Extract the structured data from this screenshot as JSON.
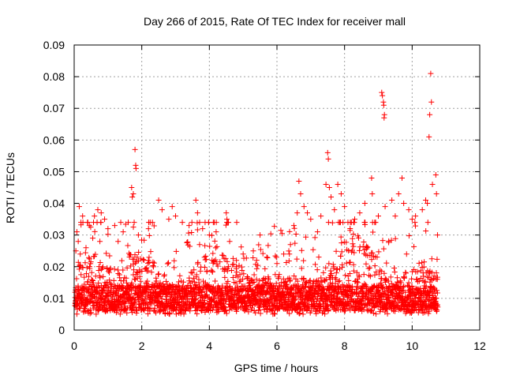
{
  "chart_data": {
    "type": "scatter",
    "title": "Day 266 of 2015, Rate Of TEC Index for receiver mall",
    "xlabel": "GPS time / hours",
    "ylabel": "ROTI / TECUs",
    "xlim": [
      0,
      12
    ],
    "ylim": [
      0,
      0.09
    ],
    "x_ticks": [
      0,
      2,
      4,
      6,
      8,
      10,
      12
    ],
    "x_tick_labels": [
      "0",
      "2",
      "4",
      "6",
      "8",
      "10",
      "12"
    ],
    "y_ticks": [
      0,
      0.01,
      0.02,
      0.03,
      0.04,
      0.05,
      0.06,
      0.07,
      0.08,
      0.09
    ],
    "y_tick_labels": [
      "0",
      "0.01",
      "0.02",
      "0.03",
      "0.04",
      "0.05",
      "0.06",
      "0.07",
      "0.08",
      "0.09"
    ],
    "grid": true,
    "marker": "+",
    "color": "#ff0000",
    "series": [
      {
        "name": "ROTI",
        "points": [
          [
            0.05,
            0.025
          ],
          [
            0.08,
            0.031
          ],
          [
            0.12,
            0.028
          ],
          [
            0.15,
            0.039
          ],
          [
            0.2,
            0.034
          ],
          [
            0.25,
            0.036
          ],
          [
            0.35,
            0.026
          ],
          [
            0.45,
            0.033
          ],
          [
            0.55,
            0.029
          ],
          [
            0.6,
            0.036
          ],
          [
            0.7,
            0.038
          ],
          [
            0.8,
            0.037
          ],
          [
            0.9,
            0.035
          ],
          [
            1.0,
            0.032
          ],
          [
            1.2,
            0.033
          ],
          [
            1.3,
            0.028
          ],
          [
            1.45,
            0.031
          ],
          [
            1.6,
            0.034
          ],
          [
            1.7,
            0.045
          ],
          [
            1.72,
            0.042
          ],
          [
            1.75,
            0.043
          ],
          [
            1.8,
            0.057
          ],
          [
            1.82,
            0.052
          ],
          [
            1.83,
            0.051
          ],
          [
            1.9,
            0.03
          ],
          [
            2.2,
            0.032
          ],
          [
            2.5,
            0.041
          ],
          [
            2.6,
            0.038
          ],
          [
            2.8,
            0.035
          ],
          [
            2.9,
            0.039
          ],
          [
            3.0,
            0.036
          ],
          [
            3.2,
            0.034
          ],
          [
            3.4,
            0.033
          ],
          [
            3.6,
            0.041
          ],
          [
            3.65,
            0.037
          ],
          [
            3.8,
            0.032
          ],
          [
            4.0,
            0.03
          ],
          [
            4.2,
            0.031
          ],
          [
            4.5,
            0.037
          ],
          [
            4.52,
            0.035
          ],
          [
            4.6,
            0.028
          ],
          [
            4.8,
            0.022
          ],
          [
            5.0,
            0.024
          ],
          [
            5.3,
            0.025
          ],
          [
            5.5,
            0.03
          ],
          [
            5.7,
            0.023
          ],
          [
            6.0,
            0.021
          ],
          [
            6.2,
            0.024
          ],
          [
            6.4,
            0.027
          ],
          [
            6.5,
            0.033
          ],
          [
            6.6,
            0.037
          ],
          [
            6.65,
            0.047
          ],
          [
            6.7,
            0.043
          ],
          [
            6.8,
            0.039
          ],
          [
            6.9,
            0.037
          ],
          [
            7.0,
            0.035
          ],
          [
            7.2,
            0.031
          ],
          [
            7.3,
            0.036
          ],
          [
            7.45,
            0.046
          ],
          [
            7.5,
            0.056
          ],
          [
            7.52,
            0.054
          ],
          [
            7.55,
            0.045
          ],
          [
            7.6,
            0.042
          ],
          [
            7.7,
            0.038
          ],
          [
            7.8,
            0.046
          ],
          [
            7.9,
            0.043
          ],
          [
            8.0,
            0.039
          ],
          [
            8.1,
            0.034
          ],
          [
            8.3,
            0.035
          ],
          [
            8.45,
            0.037
          ],
          [
            8.6,
            0.04
          ],
          [
            8.8,
            0.048
          ],
          [
            8.82,
            0.043
          ],
          [
            9.0,
            0.036
          ],
          [
            9.1,
            0.075
          ],
          [
            9.12,
            0.074
          ],
          [
            9.15,
            0.072
          ],
          [
            9.16,
            0.071
          ],
          [
            9.18,
            0.068
          ],
          [
            9.17,
            0.067
          ],
          [
            9.2,
            0.039
          ],
          [
            9.4,
            0.041
          ],
          [
            9.5,
            0.036
          ],
          [
            9.6,
            0.043
          ],
          [
            9.7,
            0.048
          ],
          [
            9.75,
            0.04
          ],
          [
            9.9,
            0.038
          ],
          [
            10.0,
            0.035
          ],
          [
            10.1,
            0.036
          ],
          [
            10.3,
            0.038
          ],
          [
            10.4,
            0.041
          ],
          [
            10.45,
            0.04
          ],
          [
            10.5,
            0.061
          ],
          [
            10.52,
            0.068
          ],
          [
            10.55,
            0.081
          ],
          [
            10.57,
            0.072
          ],
          [
            10.6,
            0.046
          ],
          [
            10.7,
            0.049
          ],
          [
            10.72,
            0.043
          ],
          [
            10.75,
            0.03
          ]
        ]
      }
    ]
  }
}
